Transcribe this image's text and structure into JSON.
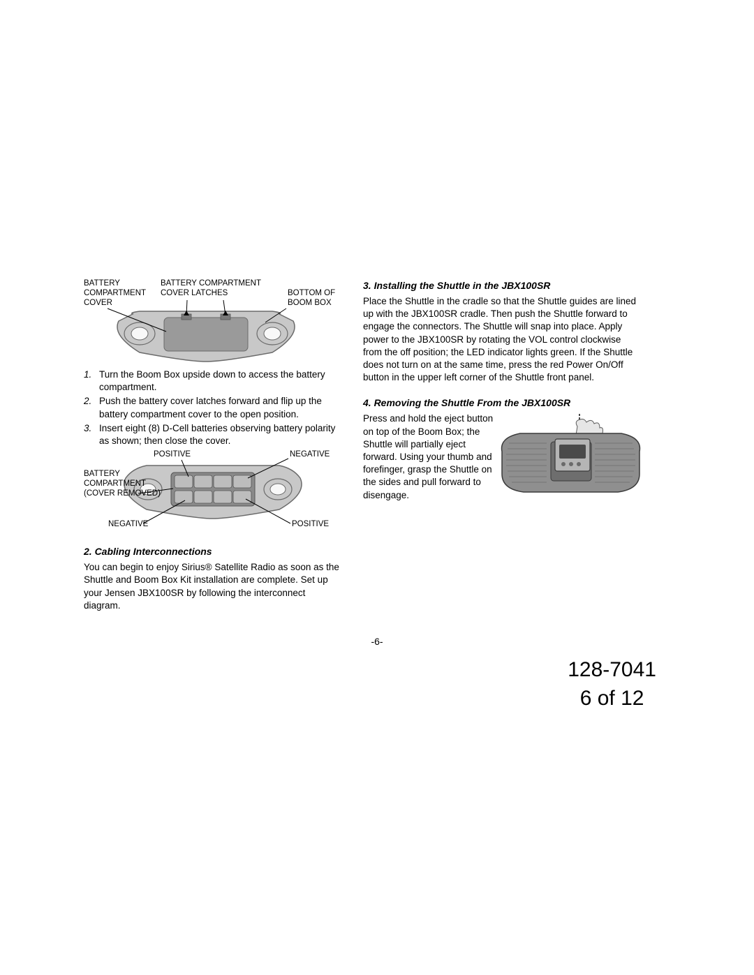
{
  "figure1": {
    "labels": {
      "battery_compartment_cover": "BATTERY\nCOMPARTMENT\nCOVER",
      "battery_compartment_cover_latches": "BATTERY COMPARTMENT\nCOVER LATCHES",
      "bottom_of_boom_box": "BOTTOM OF\nBOOM BOX"
    },
    "body_fill": "#c8c8c8",
    "body_stroke": "#6a6a6a",
    "inner_fill": "#9a9a9a",
    "leader_color": "#000000"
  },
  "steps": [
    "Turn the Boom Box upside down to access the battery compartment.",
    "Push the battery cover latches forward and flip up the battery compartment cover to the open position.",
    "Insert eight (8) D-Cell batteries observing battery polarity as shown; then close the cover."
  ],
  "figure2": {
    "labels": {
      "positive_tl": "POSITIVE",
      "negative_tr": "NEGATIVE",
      "battery_compartment_cover_removed": "BATTERY\nCOMPARTMENT\n(COVER REMOVED)",
      "negative_bl": "NEGATIVE",
      "positive_br": "POSITIVE"
    },
    "body_fill": "#c8c8c8",
    "body_stroke": "#6a6a6a",
    "inner_fill": "#8a8a8a",
    "battery_fill": "#bdbdbd"
  },
  "section2": {
    "heading": "2. Cabling Interconnections",
    "body": "You can begin to enjoy Sirius® Satellite Radio as soon as the Shuttle and Boom Box Kit installation are complete. Set up your Jensen JBX100SR by following the interconnect diagram."
  },
  "section3": {
    "heading": "3. Installing the Shuttle in the JBX100SR",
    "body": "Place the Shuttle in the cradle so that the Shuttle guides are lined up with the JBX100SR cradle. Then push the Shuttle forward to engage the connectors. The Shuttle will snap into place. Apply power to the JBX100SR by rotating the VOL control clockwise from the off position; the LED indicator lights green. If the Shuttle does not turn on at the same time, press the red Power On/Off button in the upper left corner of the Shuttle front panel."
  },
  "section4": {
    "heading": "4. Removing the Shuttle From  the JBX100SR",
    "body": "Press and hold the eject button on top of the Boom Box; the Shuttle will partially eject forward. Using your thumb and forefinger, grasp the Shuttle on the sides and pull forward to disengage."
  },
  "removal_fig": {
    "body_fill": "#8f8f8f",
    "body_stroke": "#3a3a3a",
    "shuttle_fill": "#b5b5b5",
    "hand_fill": "#e6e6e6",
    "hand_stroke": "#5a5a5a",
    "arrow_fill": "#4a4a4a"
  },
  "page_number_inner": "-6-",
  "footer": {
    "doc_id": "128-7041",
    "page_of": "6 of 12"
  }
}
